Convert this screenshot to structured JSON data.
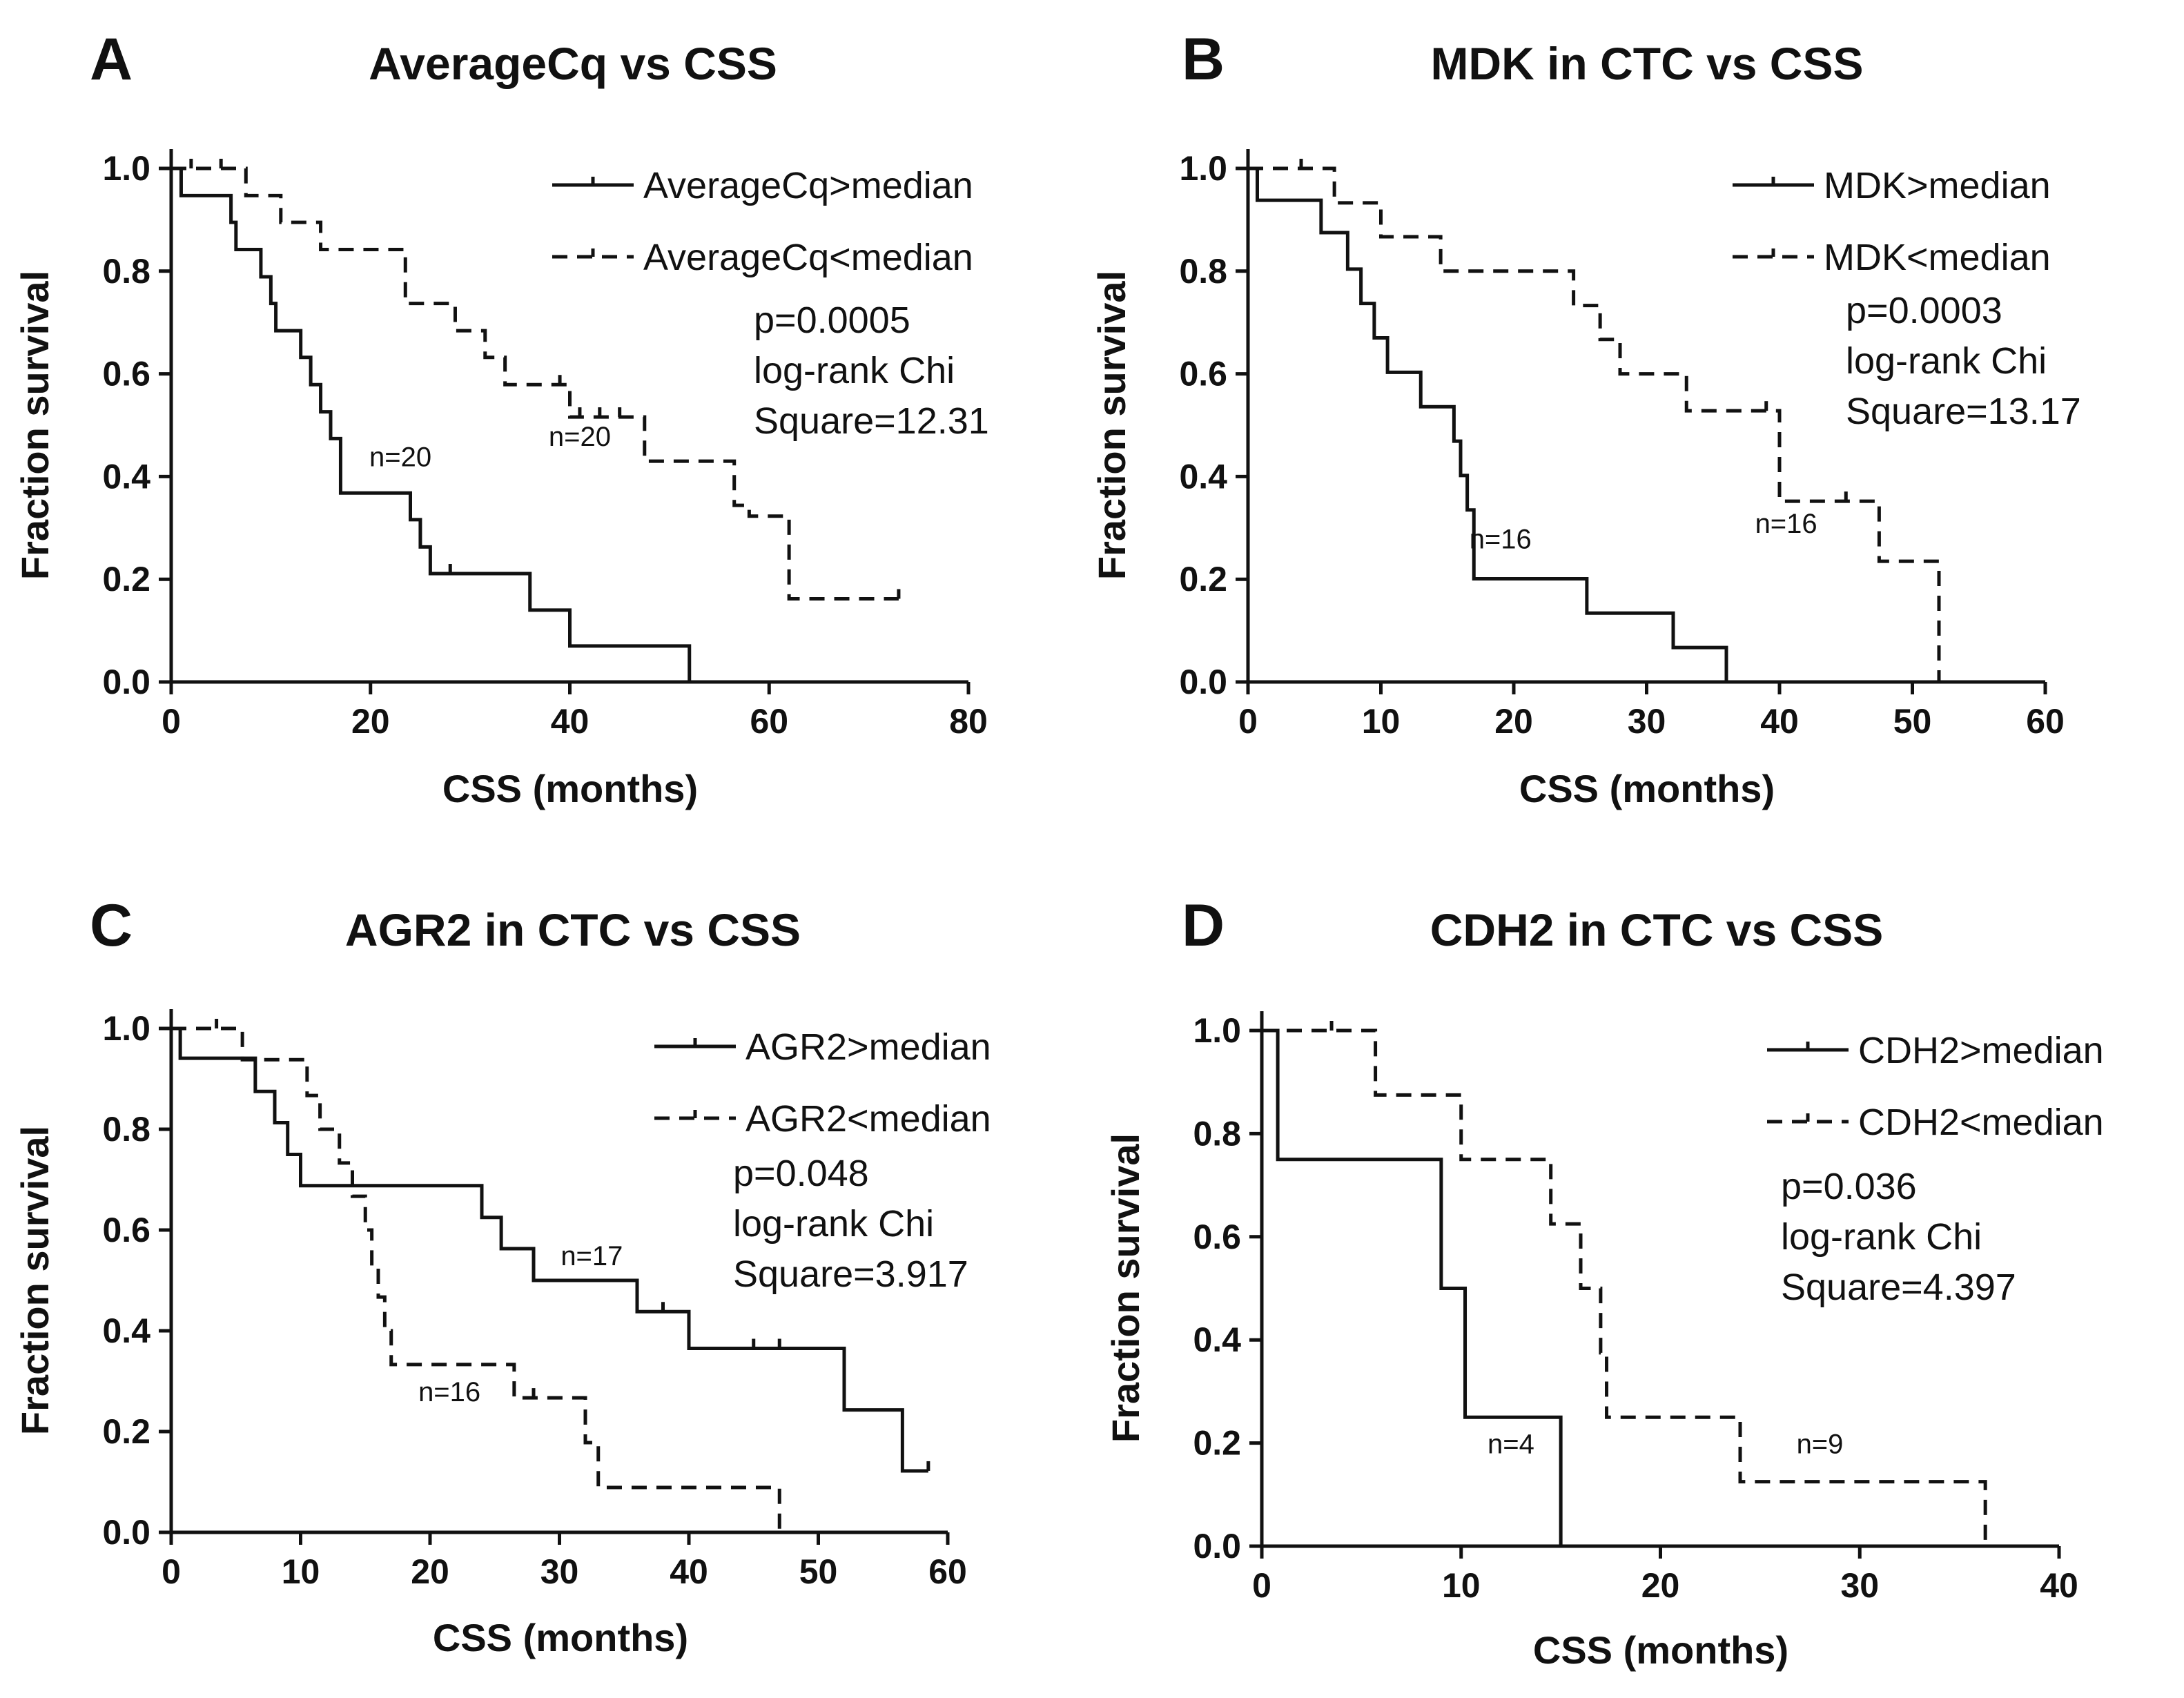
{
  "figure_type": "kaplan-meier survival curves",
  "chart_data": [
    {
      "panel": "A",
      "type": "line",
      "title": "AverageCq vs CSS",
      "xlabel": "CSS (months)",
      "ylabel": "Fraction survival",
      "xlim": [
        0,
        80
      ],
      "ylim": [
        0,
        1.0
      ],
      "xticks": [
        "0",
        "20",
        "40",
        "60",
        "80"
      ],
      "yticks": [
        "0.0",
        "0.2",
        "0.4",
        "0.6",
        "0.8",
        "1.0"
      ],
      "xtick_values": [
        0,
        20,
        40,
        60,
        80
      ],
      "ytick_values": [
        0,
        0.2,
        0.4,
        0.6,
        0.8,
        1.0
      ],
      "series": [
        {
          "name": "AverageCq>median",
          "style": "solid",
          "n_label": "n=20",
          "n_label_at": [
            23,
            0.42
          ],
          "steps": [
            [
              0,
              1.0
            ],
            [
              1,
              0.947
            ],
            [
              6,
              0.895
            ],
            [
              6.5,
              0.842
            ],
            [
              9,
              0.789
            ],
            [
              10,
              0.737
            ],
            [
              10.5,
              0.684
            ],
            [
              13,
              0.632
            ],
            [
              14,
              0.579
            ],
            [
              15,
              0.526
            ],
            [
              16,
              0.474
            ],
            [
              17,
              0.368
            ],
            [
              24,
              0.316
            ],
            [
              25,
              0.263
            ],
            [
              26,
              0.211
            ],
            [
              36,
              0.14
            ],
            [
              40,
              0.07
            ],
            [
              52,
              0.0
            ]
          ],
          "end_x": 52,
          "censors": [
            [
              28,
              0.211
            ]
          ]
        },
        {
          "name": "AverageCq<median",
          "style": "dashed",
          "n_label": "n=20",
          "n_label_at": [
            41,
            0.46
          ],
          "steps": [
            [
              0,
              1.0
            ],
            [
              7.5,
              0.947
            ],
            [
              11,
              0.895
            ],
            [
              15,
              0.842
            ],
            [
              23.5,
              0.737
            ],
            [
              28.5,
              0.684
            ],
            [
              31.5,
              0.632
            ],
            [
              33.5,
              0.579
            ],
            [
              40,
              0.516
            ],
            [
              47.5,
              0.43
            ],
            [
              56.5,
              0.344
            ],
            [
              58,
              0.323
            ],
            [
              62,
              0.162
            ]
          ],
          "end_x": 73,
          "censors": [
            [
              2,
              1.0
            ],
            [
              5,
              1.0
            ],
            [
              39,
              0.579
            ],
            [
              41,
              0.516
            ],
            [
              43,
              0.516
            ],
            [
              45,
              0.516
            ],
            [
              73,
              0.162
            ]
          ]
        }
      ],
      "annotation": [
        "p=0.0005",
        "log-rank Chi",
        "Square=12.31"
      ]
    },
    {
      "panel": "B",
      "type": "line",
      "title": "MDK in CTC vs CSS",
      "xlabel": "CSS (months)",
      "ylabel": "Fraction survival",
      "xlim": [
        0,
        60
      ],
      "ylim": [
        0,
        1.0
      ],
      "xticks": [
        "0",
        "10",
        "20",
        "30",
        "40",
        "50",
        "60"
      ],
      "yticks": [
        "0.0",
        "0.2",
        "0.4",
        "0.6",
        "0.8",
        "1.0"
      ],
      "xtick_values": [
        0,
        10,
        20,
        30,
        40,
        50,
        60
      ],
      "ytick_values": [
        0,
        0.2,
        0.4,
        0.6,
        0.8,
        1.0
      ],
      "series": [
        {
          "name": "MDK>median",
          "style": "solid",
          "n_label": "n=16",
          "n_label_at": [
            19,
            0.26
          ],
          "steps": [
            [
              0,
              1.0
            ],
            [
              0.7,
              0.938
            ],
            [
              5.5,
              0.875
            ],
            [
              7.5,
              0.804
            ],
            [
              8.5,
              0.737
            ],
            [
              9.5,
              0.67
            ],
            [
              10.5,
              0.603
            ],
            [
              13,
              0.536
            ],
            [
              15.5,
              0.469
            ],
            [
              16,
              0.402
            ],
            [
              16.5,
              0.335
            ],
            [
              17,
              0.201
            ],
            [
              25.5,
              0.134
            ],
            [
              32,
              0.067
            ],
            [
              36,
              0.0
            ]
          ],
          "end_x": 36,
          "censors": []
        },
        {
          "name": "MDK<median",
          "style": "dashed",
          "n_label": "n=16",
          "n_label_at": [
            40.5,
            0.29
          ],
          "steps": [
            [
              0,
              1.0
            ],
            [
              6.5,
              0.933
            ],
            [
              10,
              0.867
            ],
            [
              14.5,
              0.8
            ],
            [
              24.5,
              0.733
            ],
            [
              26.5,
              0.667
            ],
            [
              28,
              0.6
            ],
            [
              33,
              0.528
            ],
            [
              40,
              0.352
            ],
            [
              47.5,
              0.235
            ],
            [
              52,
              0.0
            ]
          ],
          "end_x": 52,
          "censors": [
            [
              4,
              1.0
            ],
            [
              39,
              0.528
            ],
            [
              45,
              0.352
            ]
          ]
        }
      ],
      "annotation": [
        "p=0.0003",
        "log-rank Chi",
        "Square=13.17"
      ]
    },
    {
      "panel": "C",
      "type": "line",
      "title": "AGR2 in CTC vs CSS",
      "xlabel": "CSS (months)",
      "ylabel": "Fraction survival",
      "xlim": [
        0,
        60
      ],
      "ylim": [
        0,
        1.0
      ],
      "xticks": [
        "0",
        "10",
        "20",
        "30",
        "40",
        "50",
        "60"
      ],
      "yticks": [
        "0.0",
        "0.2",
        "0.4",
        "0.6",
        "0.8",
        "1.0"
      ],
      "xtick_values": [
        0,
        10,
        20,
        30,
        40,
        50,
        60
      ],
      "ytick_values": [
        0,
        0.2,
        0.4,
        0.6,
        0.8,
        1.0
      ],
      "series": [
        {
          "name": "AGR2>median",
          "style": "solid",
          "n_label": "n=17",
          "n_label_at": [
            32.5,
            0.53
          ],
          "steps": [
            [
              0,
              1.0
            ],
            [
              0.7,
              0.941
            ],
            [
              6.5,
              0.875
            ],
            [
              8,
              0.813
            ],
            [
              9,
              0.75
            ],
            [
              10,
              0.688
            ],
            [
              24,
              0.625
            ],
            [
              25.5,
              0.563
            ],
            [
              28,
              0.5
            ],
            [
              36,
              0.438
            ],
            [
              40,
              0.365
            ],
            [
              52,
              0.243
            ],
            [
              56.5,
              0.122
            ]
          ],
          "end_x": 58.5,
          "censors": [
            [
              38,
              0.438
            ],
            [
              45,
              0.365
            ],
            [
              47,
              0.365
            ],
            [
              58.5,
              0.122
            ]
          ]
        },
        {
          "name": "AGR2<median",
          "style": "dashed",
          "n_label": "n=16",
          "n_label_at": [
            21.5,
            0.26
          ],
          "steps": [
            [
              0,
              1.0
            ],
            [
              5.5,
              0.938
            ],
            [
              10.5,
              0.867
            ],
            [
              11.5,
              0.8
            ],
            [
              13,
              0.733
            ],
            [
              14,
              0.667
            ],
            [
              15,
              0.6
            ],
            [
              15.5,
              0.533
            ],
            [
              16,
              0.467
            ],
            [
              16.5,
              0.4
            ],
            [
              17,
              0.333
            ],
            [
              26.5,
              0.267
            ],
            [
              32,
              0.178
            ],
            [
              33,
              0.089
            ],
            [
              47,
              0.0
            ]
          ],
          "end_x": 47,
          "censors": [
            [
              3.5,
              1.0
            ],
            [
              28,
              0.267
            ]
          ]
        }
      ],
      "annotation": [
        "p=0.048",
        "log-rank Chi",
        "Square=3.917"
      ]
    },
    {
      "panel": "D",
      "type": "line",
      "title": "CDH2 in CTC vs CSS",
      "xlabel": "CSS (months)",
      "ylabel": "Fraction survival",
      "xlim": [
        0,
        40
      ],
      "ylim": [
        0,
        1.0
      ],
      "xticks": [
        "0",
        "10",
        "20",
        "30",
        "40"
      ],
      "yticks": [
        "0.0",
        "0.2",
        "0.4",
        "0.6",
        "0.8",
        "1.0"
      ],
      "xtick_values": [
        0,
        10,
        20,
        30,
        40
      ],
      "ytick_values": [
        0,
        0.2,
        0.4,
        0.6,
        0.8,
        1.0
      ],
      "series": [
        {
          "name": "CDH2>median",
          "style": "solid",
          "n_label": "n=4",
          "n_label_at": [
            12.5,
            0.18
          ],
          "steps": [
            [
              0,
              1.0
            ],
            [
              0.8,
              0.75
            ],
            [
              9,
              0.5
            ],
            [
              10.2,
              0.25
            ],
            [
              15,
              0.0
            ]
          ],
          "end_x": 15,
          "censors": []
        },
        {
          "name": "CDH2<median",
          "style": "dashed",
          "n_label": "n=9",
          "n_label_at": [
            28,
            0.18
          ],
          "steps": [
            [
              0,
              1.0
            ],
            [
              5.7,
              0.875
            ],
            [
              10,
              0.75
            ],
            [
              14.5,
              0.625
            ],
            [
              16,
              0.5
            ],
            [
              17,
              0.375
            ],
            [
              17.3,
              0.25
            ],
            [
              24,
              0.125
            ],
            [
              36.3,
              0.0
            ]
          ],
          "end_x": 36.3,
          "censors": [
            [
              3.5,
              1.0
            ]
          ]
        }
      ],
      "annotation": [
        "p=0.036",
        "log-rank Chi",
        "Square=4.397"
      ]
    }
  ]
}
